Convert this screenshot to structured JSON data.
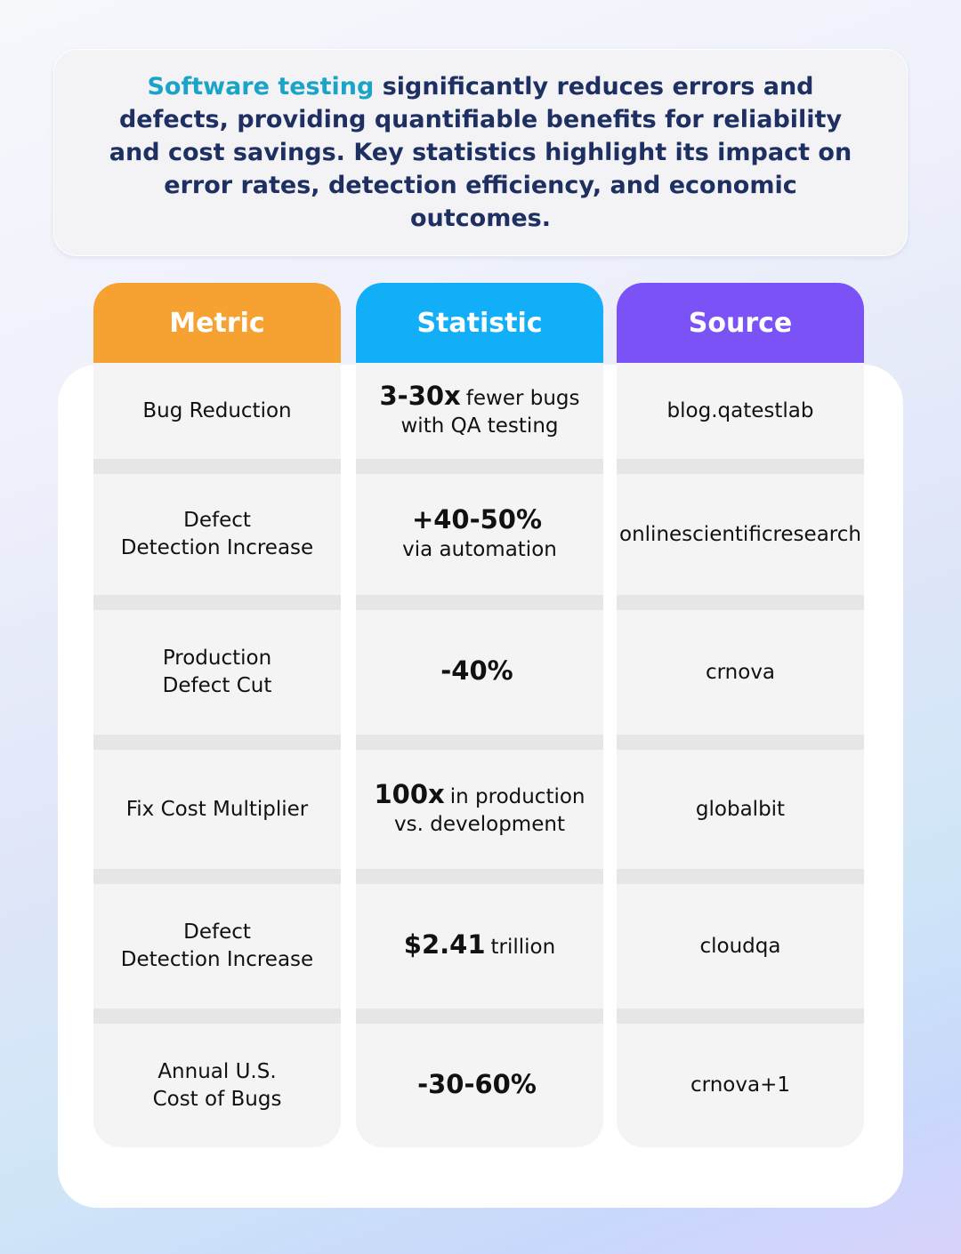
{
  "intro": {
    "highlight": "Software testing",
    "text": "significantly reduces errors and defects, providing quantifiable benefits for reliability and cost savings. Key statistics highlight its impact on error rates, detection efficiency, and economic outcomes."
  },
  "table": {
    "headers": [
      "Metric",
      "Statistic",
      "Source"
    ],
    "rows": [
      {
        "metric": [
          "Bug Reduction"
        ],
        "statistic": [
          {
            "strong": "3-30x",
            "text": "fewer bugs"
          },
          {
            "text": "with QA testing"
          }
        ],
        "source": "blog.qatestlab"
      },
      {
        "metric": [
          "Defect",
          "Detection Increase"
        ],
        "statistic": [
          {
            "strong": "+40-50%"
          },
          {
            "text": "via automation"
          }
        ],
        "source": "onlinescientificresearch"
      },
      {
        "metric": [
          "Production",
          "Defect Cut"
        ],
        "statistic": [
          {
            "strong": "-40%"
          }
        ],
        "source": "crnova"
      },
      {
        "metric": [
          "Fix Cost Multiplier"
        ],
        "statistic": [
          {
            "strong": "100x",
            "text": "in production"
          },
          {
            "text": "vs. development"
          }
        ],
        "source": "globalbit"
      },
      {
        "metric": [
          "Defect",
          "Detection Increase"
        ],
        "statistic": [
          {
            "strong": "$2.41",
            "text": "trillion"
          }
        ],
        "source": "cloudqa"
      },
      {
        "metric": [
          "Annual U.S.",
          "Cost of Bugs"
        ],
        "statistic": [
          {
            "strong": "-30-60%"
          }
        ],
        "source": "crnova+1"
      }
    ]
  }
}
